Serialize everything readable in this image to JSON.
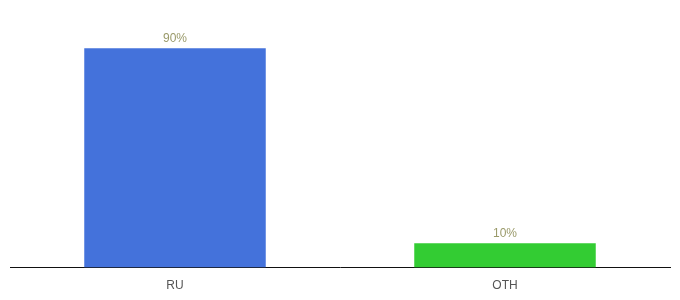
{
  "chart_data": {
    "type": "bar",
    "categories": [
      "RU",
      "OTH"
    ],
    "values": [
      90,
      10
    ],
    "colors": [
      "#4472db",
      "#33cc33"
    ],
    "value_labels": [
      "90%",
      "10%"
    ],
    "data_labels": true,
    "ylim": [
      0,
      100
    ],
    "grid": false,
    "tick_labels": "x"
  }
}
